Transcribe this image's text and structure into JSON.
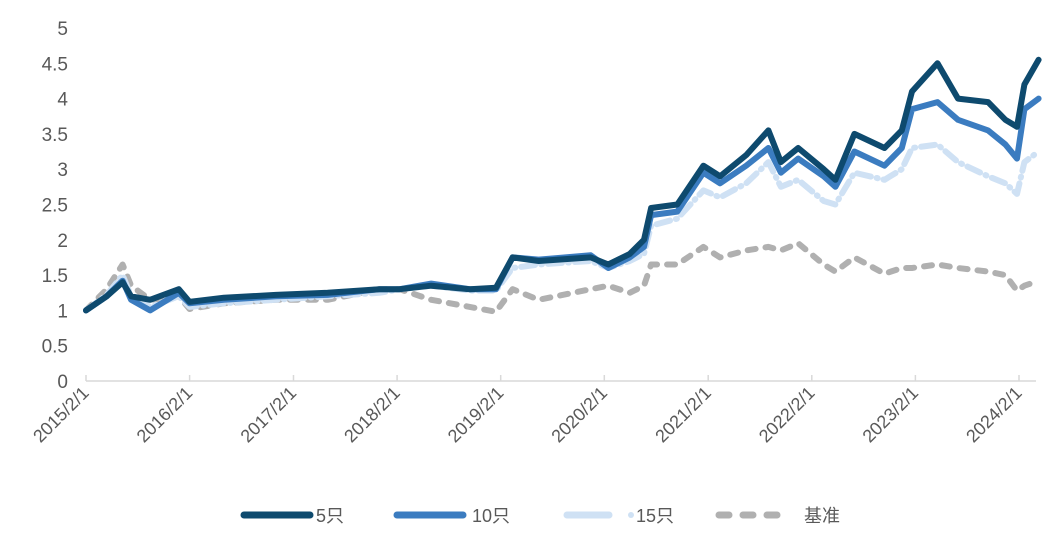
{
  "chart_data": {
    "type": "line",
    "title": "",
    "xlabel": "",
    "ylabel": "",
    "ylim": [
      0,
      5
    ],
    "yticks": [
      "0",
      "0.5",
      "1",
      "1.5",
      "2",
      "2.5",
      "3",
      "3.5",
      "4",
      "4.5",
      "5"
    ],
    "xticks": [
      "2015/2/1",
      "2016/2/1",
      "2017/2/1",
      "2018/2/1",
      "2019/2/1",
      "2020/2/1",
      "2021/2/1",
      "2022/2/1",
      "2023/2/1",
      "2024/2/1"
    ],
    "xlim": [
      "2015-02-01",
      "2024-04-15"
    ],
    "grid": false,
    "legend_position": "bottom",
    "x": [
      "2015-02-01",
      "2015-04-15",
      "2015-06-10",
      "2015-07-10",
      "2015-09-15",
      "2015-12-25",
      "2016-02-01",
      "2016-06-01",
      "2016-12-01",
      "2017-06-01",
      "2017-12-01",
      "2018-02-10",
      "2018-06-01",
      "2018-10-15",
      "2019-01-15",
      "2019-03-15",
      "2019-06-15",
      "2019-12-15",
      "2020-02-15",
      "2020-05-01",
      "2020-06-20",
      "2020-07-15",
      "2020-10-15",
      "2021-01-15",
      "2021-03-15",
      "2021-06-15",
      "2021-09-01",
      "2021-10-15",
      "2021-12-15",
      "2022-03-15",
      "2022-04-25",
      "2022-07-01",
      "2022-10-15",
      "2022-12-15",
      "2023-01-20",
      "2023-04-20",
      "2023-07-01",
      "2023-10-15",
      "2023-12-15",
      "2024-01-25",
      "2024-02-20",
      "2024-04-10"
    ],
    "series": [
      {
        "name": "5只",
        "color": "#0e4a6e",
        "style": "solid",
        "values": [
          1.0,
          1.2,
          1.4,
          1.2,
          1.15,
          1.3,
          1.12,
          1.18,
          1.22,
          1.25,
          1.3,
          1.3,
          1.35,
          1.3,
          1.32,
          1.75,
          1.7,
          1.75,
          1.65,
          1.8,
          2.0,
          2.45,
          2.5,
          3.05,
          2.9,
          3.2,
          3.55,
          3.1,
          3.3,
          3.0,
          2.85,
          3.5,
          3.3,
          3.55,
          4.1,
          4.5,
          4.0,
          3.95,
          3.7,
          3.6,
          4.2,
          4.55
        ]
      },
      {
        "name": "10只",
        "color": "#3b7cc0",
        "style": "solid",
        "values": [
          1.0,
          1.2,
          1.42,
          1.15,
          1.0,
          1.25,
          1.1,
          1.15,
          1.2,
          1.22,
          1.3,
          1.3,
          1.38,
          1.3,
          1.3,
          1.75,
          1.72,
          1.78,
          1.6,
          1.75,
          1.9,
          2.35,
          2.4,
          2.95,
          2.8,
          3.05,
          3.3,
          2.95,
          3.15,
          2.9,
          2.75,
          3.25,
          3.05,
          3.3,
          3.85,
          3.95,
          3.7,
          3.55,
          3.35,
          3.15,
          3.85,
          4.0
        ]
      },
      {
        "name": "15只",
        "color": "#cfe1f4",
        "style": "dash-dot",
        "values": [
          1.0,
          1.22,
          1.5,
          1.2,
          1.05,
          1.2,
          1.05,
          1.1,
          1.15,
          1.2,
          1.25,
          1.3,
          1.35,
          1.28,
          1.28,
          1.6,
          1.65,
          1.7,
          1.6,
          1.7,
          1.8,
          2.2,
          2.3,
          2.7,
          2.6,
          2.8,
          3.1,
          2.75,
          2.85,
          2.55,
          2.5,
          2.95,
          2.85,
          3.0,
          3.3,
          3.35,
          3.1,
          2.9,
          2.8,
          2.65,
          3.1,
          3.25
        ]
      },
      {
        "name": "基准",
        "color": "#b0b0b0",
        "style": "dashed",
        "values": [
          1.0,
          1.3,
          1.65,
          1.35,
          1.15,
          1.2,
          1.02,
          1.1,
          1.15,
          1.15,
          1.3,
          1.3,
          1.15,
          1.05,
          0.98,
          1.3,
          1.15,
          1.3,
          1.35,
          1.25,
          1.35,
          1.65,
          1.65,
          1.9,
          1.75,
          1.85,
          1.9,
          1.85,
          1.95,
          1.65,
          1.55,
          1.75,
          1.52,
          1.6,
          1.6,
          1.65,
          1.6,
          1.55,
          1.5,
          1.28,
          1.35,
          1.42
        ]
      }
    ]
  }
}
